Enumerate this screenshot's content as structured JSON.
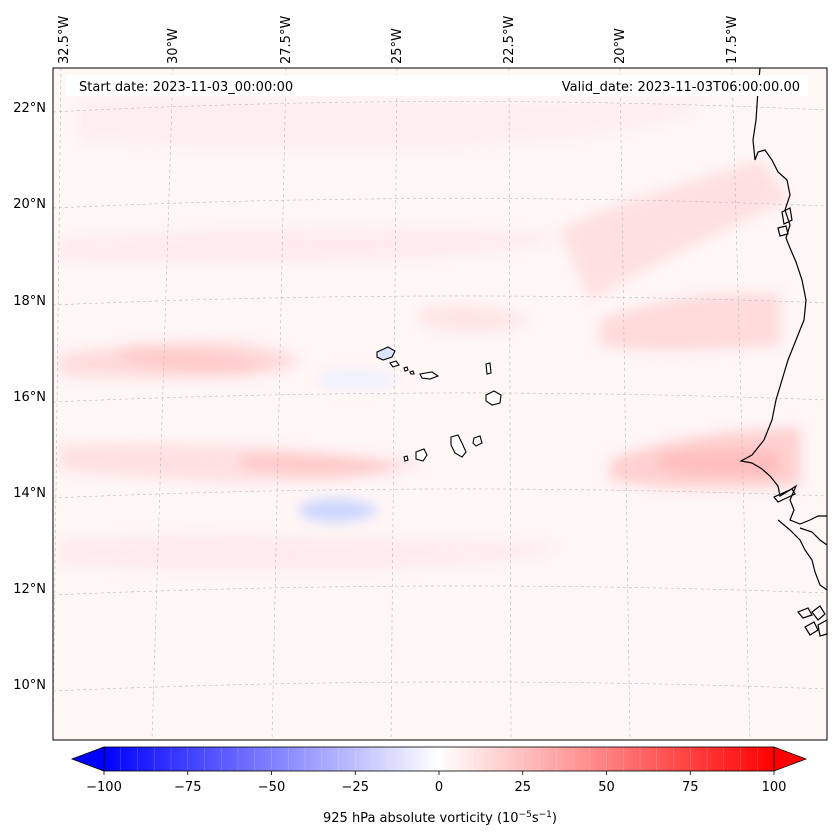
{
  "header": {
    "start_date": "Start date: 2023-11-03_00:00:00",
    "valid_date": "Valid_date: 2023-11-03T06:00:00.00"
  },
  "map": {
    "projection": "lambert-conformal",
    "field": "925 hPa absolute vorticity",
    "lon_labels": [
      "32.5°W",
      "30°W",
      "27.5°W",
      "25°W",
      "22.5°W",
      "20°W",
      "17.5°W"
    ],
    "lat_labels": [
      "22°N",
      "20°N",
      "18°N",
      "16°N",
      "14°N",
      "12°N",
      "10°N"
    ],
    "gridlines": true,
    "coastline_color": "#000000",
    "features": [
      "cape-verde-islands",
      "west-africa-coastline"
    ]
  },
  "colorbar": {
    "ticks": [
      "−100",
      "−75",
      "−50",
      "−25",
      "0",
      "25",
      "50",
      "75",
      "100"
    ],
    "vmin": -100,
    "vmax": 100,
    "cmap": "bwr",
    "extend": "both",
    "label_main": "925 hPa absolute vorticity (10",
    "label_exp1": "−5",
    "label_mid": "s",
    "label_exp2": "−1",
    "label_end": ")"
  }
}
